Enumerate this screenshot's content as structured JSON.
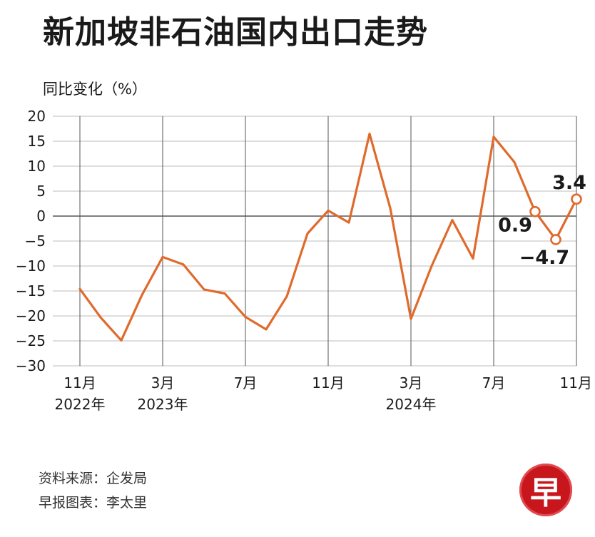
{
  "chart_data": {
    "type": "line",
    "title": "新加坡非石油国内出口走势",
    "ylabel": "同比变化（%）",
    "xlabel": "",
    "ylim": [
      -30,
      20
    ],
    "yticks": [
      "20",
      "15",
      "10",
      "5",
      "0",
      "−5",
      "−10",
      "−15",
      "−20",
      "−25",
      "−30"
    ],
    "x_tick_labels": [
      {
        "index": 0,
        "month": "11月",
        "year": "2022年"
      },
      {
        "index": 4,
        "month": "3月",
        "year": "2023年"
      },
      {
        "index": 8,
        "month": "7月",
        "year": ""
      },
      {
        "index": 12,
        "month": "11月",
        "year": ""
      },
      {
        "index": 16,
        "month": "3月",
        "year": "2024年"
      },
      {
        "index": 20,
        "month": "7月",
        "year": ""
      },
      {
        "index": 24,
        "month": "11月",
        "year": ""
      }
    ],
    "grid": true,
    "line_color": "#e06a2c",
    "series": [
      {
        "values": [
          -14.6,
          -20.3,
          -24.9,
          -15.8,
          -8.2,
          -9.7,
          -14.7,
          -15.5,
          -20.2,
          -22.7,
          -16.1,
          -3.5,
          1.1,
          -1.3,
          16.5,
          1.6,
          -20.6,
          -10.0,
          -0.8,
          -8.5,
          15.9,
          10.8,
          0.9,
          -4.7,
          3.4
        ]
      }
    ],
    "markers": [
      22,
      23,
      24
    ],
    "annotations": [
      {
        "index": 22,
        "text": "0.9"
      },
      {
        "index": 23,
        "text": "−4.7"
      },
      {
        "index": 24,
        "text": "3.4"
      }
    ]
  },
  "footer": {
    "source": "资料来源：企发局",
    "credit": "早报图表：李太里"
  },
  "logo": {
    "glyph": "早",
    "color": "#c8161d"
  }
}
